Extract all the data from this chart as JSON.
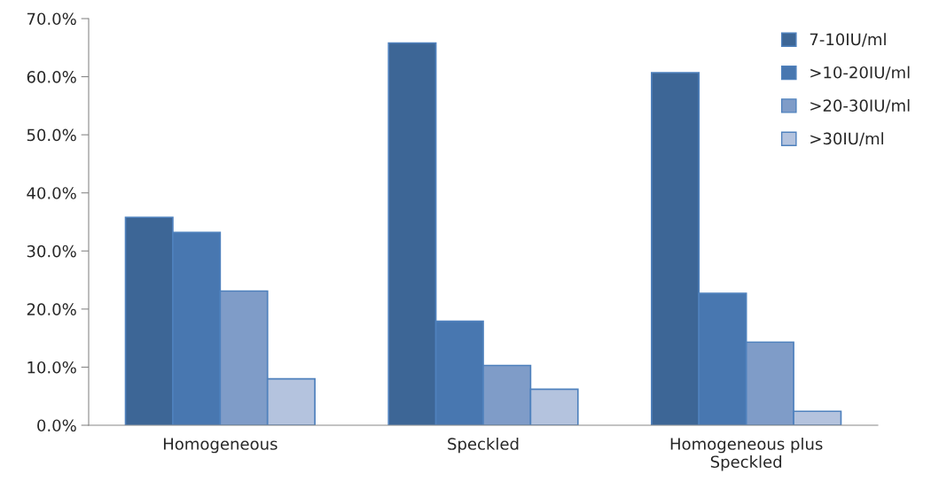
{
  "chart_data": {
    "type": "bar",
    "categories": [
      "Homogeneous",
      "Speckled",
      "Homogeneous plus\nSpeckled"
    ],
    "series": [
      {
        "name": "7-10IU/ml",
        "color": "#3d6696",
        "values": [
          35.8,
          65.8,
          60.7
        ]
      },
      {
        "name": ">10-20IU/ml",
        "color": "#4877b0",
        "values": [
          33.2,
          17.9,
          22.7
        ]
      },
      {
        "name": ">20-30IU/ml",
        "color": "#7f9cc8",
        "values": [
          23.1,
          10.3,
          14.3
        ]
      },
      {
        "name": ">30IU/ml",
        "color": "#b4c3de",
        "values": [
          8.0,
          6.2,
          2.4
        ]
      }
    ],
    "ylim": [
      0,
      70
    ],
    "yticks": [
      {
        "value": 0,
        "label": "0.0%"
      },
      {
        "value": 10,
        "label": "10.0%"
      },
      {
        "value": 20,
        "label": "20.0%"
      },
      {
        "value": 30,
        "label": "30.0%"
      },
      {
        "value": 40,
        "label": "40.0%"
      },
      {
        "value": 50,
        "label": "50.0%"
      },
      {
        "value": 60,
        "label": "60.0%"
      },
      {
        "value": 70,
        "label": "70.0%"
      }
    ],
    "grid": false,
    "legend": "top right"
  }
}
